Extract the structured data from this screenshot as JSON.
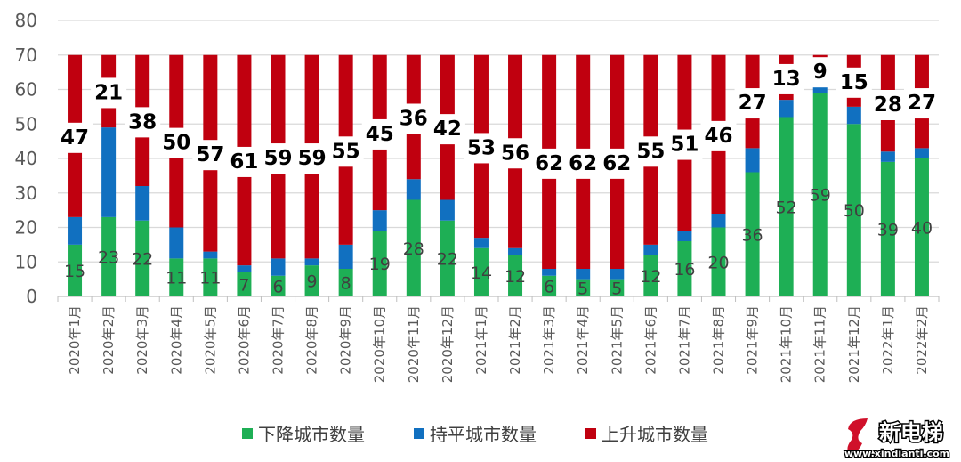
{
  "chart_data": {
    "type": "bar",
    "stacked": true,
    "categories": [
      "2020年1月",
      "2020年2月",
      "2020年3月",
      "2020年4月",
      "2020年5月",
      "2020年6月",
      "2020年7月",
      "2020年8月",
      "2020年9月",
      "2020年10月",
      "2020年11月",
      "2020年12月",
      "2021年1月",
      "2021年2月",
      "2021年3月",
      "2021年4月",
      "2021年5月",
      "2021年6月",
      "2021年7月",
      "2021年8月",
      "2021年9月",
      "2021年10月",
      "2021年11月",
      "2021年12月",
      "2022年1月",
      "2022年2月"
    ],
    "series": [
      {
        "name": "下降城市数量",
        "color": "#1eaf55",
        "values": [
          15,
          23,
          22,
          11,
          11,
          7,
          6,
          9,
          8,
          19,
          28,
          22,
          14,
          12,
          6,
          5,
          5,
          12,
          16,
          20,
          36,
          52,
          59,
          50,
          39,
          40
        ]
      },
      {
        "name": "持平城市数量",
        "color": "#1170c0",
        "values": [
          8,
          26,
          10,
          9,
          2,
          2,
          5,
          2,
          7,
          6,
          6,
          6,
          3,
          2,
          2,
          3,
          3,
          3,
          3,
          4,
          7,
          5,
          2,
          5,
          3,
          3
        ]
      },
      {
        "name": "上升城市数量",
        "color": "#c0000f",
        "values": [
          47,
          21,
          38,
          50,
          57,
          61,
          59,
          59,
          55,
          45,
          36,
          42,
          53,
          56,
          62,
          62,
          62,
          55,
          51,
          46,
          27,
          13,
          9,
          15,
          28,
          27
        ]
      }
    ],
    "data_labels": [
      "下降城市数量",
      "上升城市数量"
    ],
    "ylim": [
      0,
      80
    ],
    "yticks": [
      0,
      10,
      20,
      30,
      40,
      50,
      60,
      70,
      80
    ],
    "grid": true,
    "legend": "bottom",
    "title": "",
    "xlabel": "",
    "ylabel": ""
  },
  "watermark": {
    "logo_text": "新电梯",
    "url_text": "www.xindianti.com"
  }
}
